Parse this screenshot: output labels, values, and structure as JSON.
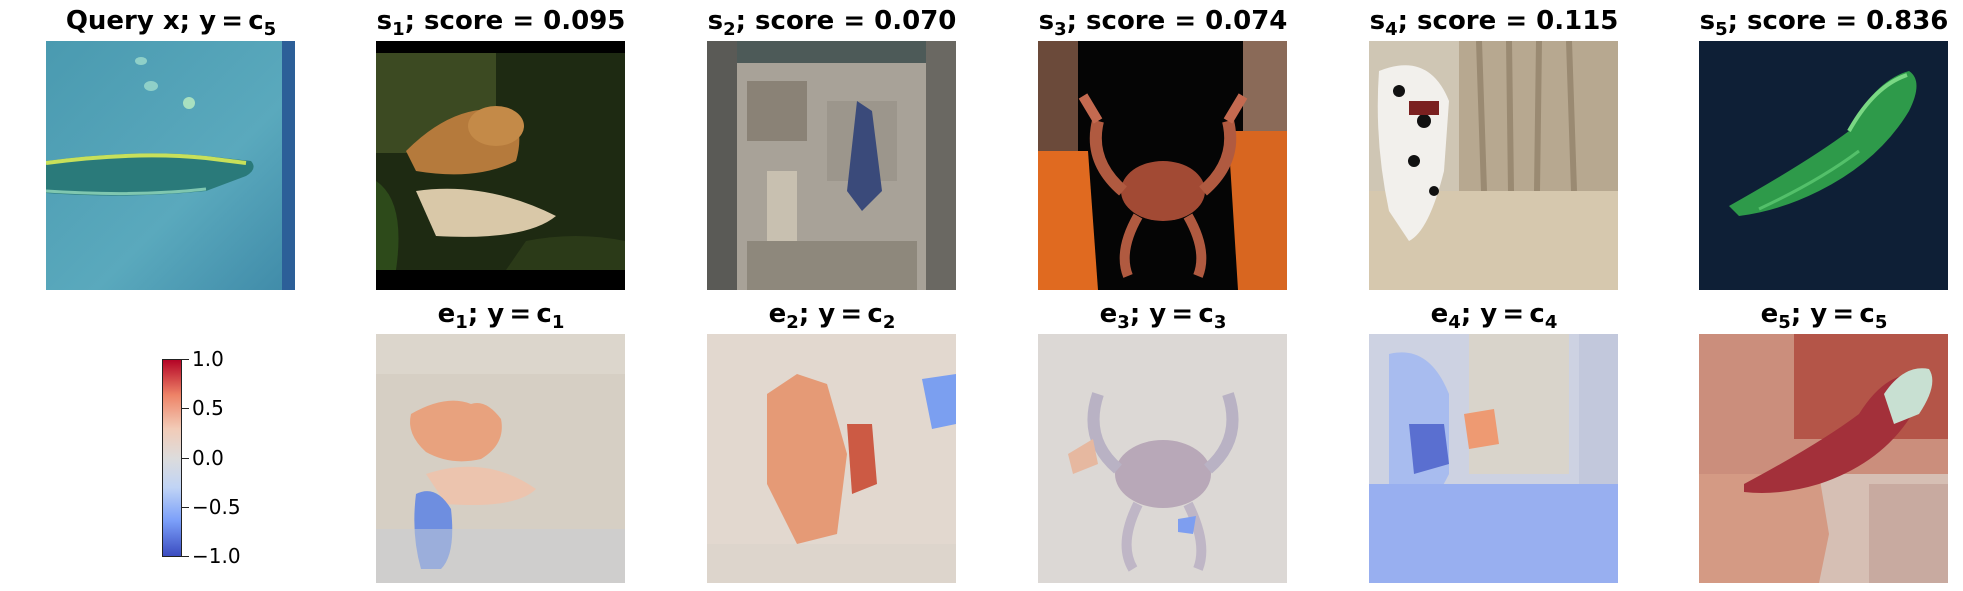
{
  "top_row": [
    {
      "prefix": "Query x; y = c",
      "sub": "5",
      "suffix": ""
    },
    {
      "prefix": "s",
      "sub": "1",
      "suffix": "; score = 0.095"
    },
    {
      "prefix": "s",
      "sub": "2",
      "suffix": "; score = 0.070"
    },
    {
      "prefix": "s",
      "sub": "3",
      "suffix": "; score = 0.074"
    },
    {
      "prefix": "s",
      "sub": "4",
      "suffix": "; score = 0.115"
    },
    {
      "prefix": "s",
      "sub": "5",
      "suffix": "; score = 0.836"
    }
  ],
  "bottom_row": [
    {
      "e": "e",
      "e_sub": "1",
      "mid": "; y = c",
      "c_sub": "1"
    },
    {
      "e": "e",
      "e_sub": "2",
      "mid": "; y = c",
      "c_sub": "2"
    },
    {
      "e": "e",
      "e_sub": "3",
      "mid": "; y = c",
      "c_sub": "3"
    },
    {
      "e": "e",
      "e_sub": "4",
      "mid": "; y = c",
      "c_sub": "4"
    },
    {
      "e": "e",
      "e_sub": "5",
      "mid": "; y = c",
      "c_sub": "5"
    }
  ],
  "colorbar": {
    "min": -1.0,
    "max": 1.0,
    "ticks": [
      "1.0",
      "0.5",
      "0.0",
      "−0.5",
      "−1.0"
    ],
    "colormap": "coolwarm"
  },
  "colors": {
    "negative": "#3b4cc0",
    "neutral": "#dddcdc",
    "positive": "#b40426"
  }
}
